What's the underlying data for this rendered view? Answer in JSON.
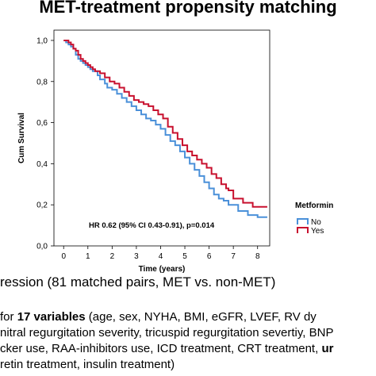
{
  "header": {
    "title": "MET-treatment propensity matching"
  },
  "chart_data": {
    "type": "line",
    "subtype": "kaplan-meier step curve",
    "xlabel": "Time (years)",
    "ylabel": "Cum Survival",
    "xlim": [
      -0.4,
      8.5
    ],
    "ylim": [
      0,
      1.05
    ],
    "x_ticks": [
      0,
      1,
      2,
      3,
      4,
      5,
      6,
      7,
      8
    ],
    "y_ticks": [
      {
        "value": 0,
        "label": "0,0"
      },
      {
        "value": 0.2,
        "label": "0,2"
      },
      {
        "value": 0.4,
        "label": "0,4"
      },
      {
        "value": 0.6,
        "label": "0,6"
      },
      {
        "value": 0.8,
        "label": "0,8"
      },
      {
        "value": 1.0,
        "label": "1,0"
      }
    ],
    "grid": false,
    "legend": {
      "title": "Metformin",
      "position": "right"
    },
    "annotation": "HR 0.62 (95% CI 0.43-0.91), p=0.014",
    "series": [
      {
        "name": "No",
        "color": "#4a90d9",
        "points": [
          [
            0,
            1.0
          ],
          [
            0.1,
            0.99
          ],
          [
            0.2,
            0.98
          ],
          [
            0.3,
            0.97
          ],
          [
            0.4,
            0.96
          ],
          [
            0.5,
            0.93
          ],
          [
            0.6,
            0.91
          ],
          [
            0.7,
            0.9
          ],
          [
            0.8,
            0.89
          ],
          [
            0.9,
            0.88
          ],
          [
            1.0,
            0.87
          ],
          [
            1.1,
            0.86
          ],
          [
            1.2,
            0.85
          ],
          [
            1.4,
            0.83
          ],
          [
            1.5,
            0.81
          ],
          [
            1.7,
            0.79
          ],
          [
            1.8,
            0.77
          ],
          [
            2.0,
            0.76
          ],
          [
            2.2,
            0.74
          ],
          [
            2.4,
            0.72
          ],
          [
            2.6,
            0.7
          ],
          [
            2.8,
            0.68
          ],
          [
            3.0,
            0.66
          ],
          [
            3.2,
            0.64
          ],
          [
            3.4,
            0.62
          ],
          [
            3.6,
            0.61
          ],
          [
            3.8,
            0.59
          ],
          [
            4.0,
            0.57
          ],
          [
            4.2,
            0.54
          ],
          [
            4.4,
            0.51
          ],
          [
            4.6,
            0.49
          ],
          [
            4.8,
            0.46
          ],
          [
            5.0,
            0.43
          ],
          [
            5.2,
            0.4
          ],
          [
            5.4,
            0.37
          ],
          [
            5.6,
            0.34
          ],
          [
            5.8,
            0.31
          ],
          [
            6.0,
            0.28
          ],
          [
            6.2,
            0.25
          ],
          [
            6.4,
            0.23
          ],
          [
            6.6,
            0.22
          ],
          [
            6.8,
            0.2
          ],
          [
            7.2,
            0.17
          ],
          [
            7.6,
            0.15
          ],
          [
            8.0,
            0.14
          ],
          [
            8.4,
            0.14
          ]
        ]
      },
      {
        "name": "Yes",
        "color": "#c8102e",
        "points": [
          [
            0,
            1.0
          ],
          [
            0.1,
            1.0
          ],
          [
            0.2,
            0.99
          ],
          [
            0.3,
            0.98
          ],
          [
            0.4,
            0.96
          ],
          [
            0.5,
            0.95
          ],
          [
            0.6,
            0.93
          ],
          [
            0.7,
            0.91
          ],
          [
            0.8,
            0.9
          ],
          [
            0.9,
            0.89
          ],
          [
            1.0,
            0.88
          ],
          [
            1.1,
            0.87
          ],
          [
            1.2,
            0.86
          ],
          [
            1.3,
            0.85
          ],
          [
            1.5,
            0.84
          ],
          [
            1.7,
            0.82
          ],
          [
            1.9,
            0.8
          ],
          [
            2.1,
            0.79
          ],
          [
            2.3,
            0.77
          ],
          [
            2.5,
            0.75
          ],
          [
            2.7,
            0.73
          ],
          [
            2.9,
            0.71
          ],
          [
            3.1,
            0.7
          ],
          [
            3.3,
            0.69
          ],
          [
            3.5,
            0.68
          ],
          [
            3.7,
            0.66
          ],
          [
            3.9,
            0.64
          ],
          [
            4.1,
            0.62
          ],
          [
            4.3,
            0.58
          ],
          [
            4.5,
            0.55
          ],
          [
            4.7,
            0.52
          ],
          [
            4.9,
            0.49
          ],
          [
            5.1,
            0.46
          ],
          [
            5.3,
            0.44
          ],
          [
            5.5,
            0.42
          ],
          [
            5.7,
            0.4
          ],
          [
            5.9,
            0.38
          ],
          [
            6.1,
            0.35
          ],
          [
            6.3,
            0.33
          ],
          [
            6.5,
            0.3
          ],
          [
            6.7,
            0.28
          ],
          [
            6.8,
            0.27
          ],
          [
            7.0,
            0.23
          ],
          [
            7.4,
            0.21
          ],
          [
            7.8,
            0.19
          ],
          [
            8.4,
            0.19
          ]
        ]
      }
    ]
  },
  "caption": {
    "text": "ression (81 matched pairs, MET vs. non-MET)"
  },
  "notes": {
    "line1_pre": "for ",
    "line1_bold": "17 variables",
    "line1_post": "  (age, sex, NYHA, BMI, eGFR, LVEF, RV dy",
    "line2": "nitral regurgitation severity, tricuspid regurgitation severtiy, BNP",
    "line3_pre": "cker use, RAA-inhibitors use, ICD treatment, CRT treatment, ",
    "line3_bold": "ur",
    "line4": "retin treatment, insulin treatment)"
  }
}
